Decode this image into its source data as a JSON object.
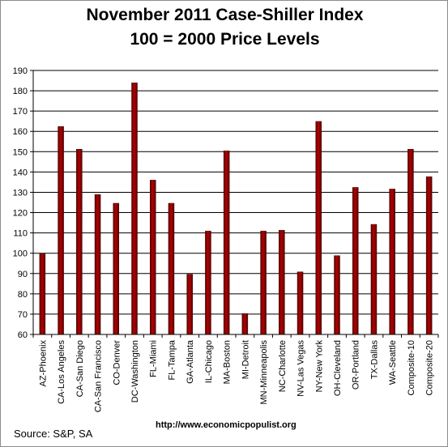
{
  "chart_data": {
    "type": "bar",
    "title": "November 2011 Case-Shiller Index",
    "subtitle": "100 = 2000 Price Levels",
    "categories": [
      "AZ-Phoenix",
      "CA-Los Angeles",
      "CA-San Diego",
      "CA-San Francisco",
      "CO-Denver",
      "DC-Washington",
      "FL-Miami",
      "FL-Tampa",
      "GA-Atlanta",
      "IL-Chicago",
      "MA-Boston",
      "MI-Detroit",
      "MN-Minneapolis",
      "NC-Charlotte",
      "NV-Las Vegas",
      "NY-New York",
      "OH-Cleveland",
      "OR-Portland",
      "TX-Dallas",
      "WA-Seattle",
      "Composite-10",
      "Composite-20"
    ],
    "values": [
      99.7,
      162.4,
      151.2,
      128.9,
      124.6,
      183.9,
      136.0,
      124.6,
      89.6,
      110.9,
      150.4,
      70.3,
      110.9,
      111.3,
      90.8,
      164.9,
      98.8,
      132.4,
      114.2,
      131.6,
      151.2,
      137.7
    ],
    "ylim": [
      60,
      190
    ],
    "yticks": [
      60,
      70,
      80,
      90,
      100,
      110,
      120,
      130,
      140,
      150,
      160,
      170,
      180,
      190
    ],
    "grid": true,
    "bar_color": "#b30000",
    "bar_dark": "#5a0000"
  },
  "source": "Source:  S&P, SA",
  "url": "http://www.economicpopulist.org"
}
